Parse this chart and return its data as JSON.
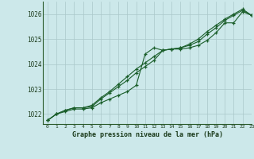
{
  "title": "Graphe pression niveau de la mer (hPa)",
  "bg_color": "#cce8ea",
  "grid_color": "#aac8ca",
  "line_color": "#1a5e2a",
  "marker_color": "#1a5e2a",
  "xlim": [
    -0.5,
    23
  ],
  "ylim": [
    1021.6,
    1026.5
  ],
  "yticks": [
    1022,
    1023,
    1024,
    1025,
    1026
  ],
  "xticks": [
    0,
    1,
    2,
    3,
    4,
    5,
    6,
    7,
    8,
    9,
    10,
    11,
    12,
    13,
    14,
    15,
    16,
    17,
    18,
    19,
    20,
    21,
    22,
    23
  ],
  "series": [
    [
      1021.75,
      1022.0,
      1022.1,
      1022.2,
      1022.2,
      1022.25,
      1022.45,
      1022.6,
      1022.75,
      1022.9,
      1023.15,
      1024.4,
      1024.65,
      1024.55,
      1024.6,
      1024.6,
      1024.65,
      1024.75,
      1024.95,
      1025.25,
      1025.65,
      1025.65,
      1026.1,
      1025.95
    ],
    [
      1021.75,
      1022.0,
      1022.15,
      1022.25,
      1022.25,
      1022.3,
      1022.6,
      1022.85,
      1023.1,
      1023.35,
      1023.65,
      1023.9,
      1024.15,
      1024.55,
      1024.6,
      1024.65,
      1024.75,
      1024.9,
      1025.2,
      1025.45,
      1025.75,
      1025.95,
      1026.15,
      1025.95
    ],
    [
      1021.75,
      1022.0,
      1022.15,
      1022.25,
      1022.25,
      1022.35,
      1022.65,
      1022.9,
      1023.2,
      1023.5,
      1023.8,
      1024.05,
      1024.3,
      1024.55,
      1024.6,
      1024.65,
      1024.8,
      1025.0,
      1025.3,
      1025.55,
      1025.8,
      1026.0,
      1026.2,
      1025.95
    ]
  ]
}
